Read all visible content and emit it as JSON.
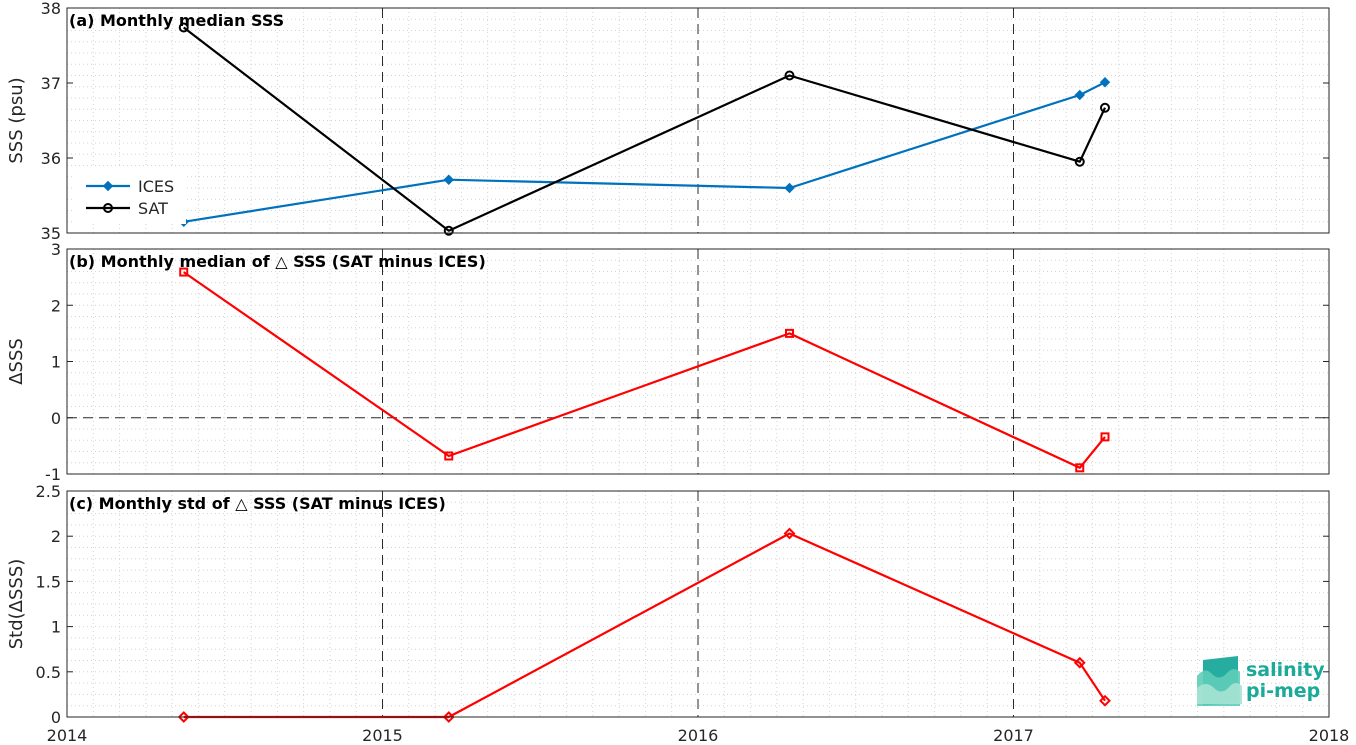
{
  "chart_data": [
    {
      "type": "line",
      "title": "(a) Monthly median SSS",
      "xlabel": "",
      "ylabel": "SSS (psu)",
      "xlim": [
        2014,
        2018
      ],
      "ylim": [
        35,
        38
      ],
      "xticks": [
        "2014",
        "2015",
        "2016",
        "2017",
        "2018"
      ],
      "yticks": [
        "35",
        "36",
        "37",
        "38"
      ],
      "grid": true,
      "legend": "left",
      "series": [
        {
          "name": "ICES",
          "color": "#0072BD",
          "marker": "diamond-filled",
          "x": [
            2014.37,
            2015.21,
            2016.29,
            2017.21,
            2017.29
          ],
          "y": [
            35.15,
            35.71,
            35.6,
            36.84,
            37.01
          ]
        },
        {
          "name": "SAT",
          "color": "#000000",
          "marker": "circle-open",
          "x": [
            2014.37,
            2015.21,
            2016.29,
            2017.21,
            2017.29
          ],
          "y": [
            37.74,
            35.03,
            37.1,
            35.95,
            36.67
          ]
        }
      ]
    },
    {
      "type": "line",
      "title": "(b) Monthly median of △ SSS (SAT minus ICES)",
      "xlabel": "",
      "ylabel": "ΔSSS",
      "xlim": [
        2014,
        2018
      ],
      "ylim": [
        -1,
        3
      ],
      "yticks": [
        "-1",
        "0",
        "1",
        "2",
        "3"
      ],
      "grid": true,
      "reference_line_y": 0,
      "series": [
        {
          "color": "#FF0000",
          "marker": "square-open",
          "x": [
            2014.37,
            2015.21,
            2016.29,
            2017.21,
            2017.29
          ],
          "y": [
            2.59,
            -0.68,
            1.5,
            -0.89,
            -0.34
          ]
        }
      ]
    },
    {
      "type": "line",
      "title": "(c) Monthly std of △ SSS (SAT minus ICES)",
      "xlabel": "",
      "ylabel": "Std(ΔSSS)",
      "xlim": [
        2014,
        2018
      ],
      "ylim": [
        0,
        2.5
      ],
      "xticks": [
        "2014",
        "2015",
        "2016",
        "2017",
        "2018"
      ],
      "yticks": [
        "0",
        "0.5",
        "1",
        "1.5",
        "2",
        "2.5"
      ],
      "grid": true,
      "series": [
        {
          "color": "#FF0000",
          "marker": "diamond-open",
          "x": [
            2014.37,
            2015.21,
            2016.29,
            2017.21,
            2017.29
          ],
          "y": [
            0.0,
            0.0,
            2.03,
            0.6,
            0.18
          ]
        }
      ]
    }
  ],
  "logo": {
    "line1": "salinity",
    "line2": "pi-mep",
    "color": "#1ba99a"
  }
}
